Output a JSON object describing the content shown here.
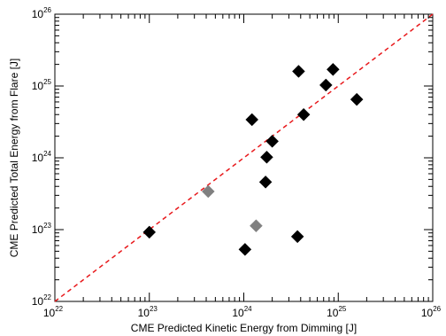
{
  "chart_data": {
    "type": "scatter",
    "title": "",
    "xlabel": "CME Predicted Kinetic Energy from Dimming [J]",
    "ylabel": "CME Predicted Total Energy from Flare [J]",
    "x_scale": "log",
    "y_scale": "log",
    "xlim": [
      1e+22,
      1e+26
    ],
    "ylim": [
      1e+22,
      1e+26
    ],
    "x_ticks": [
      {
        "base": "10",
        "exp": "22",
        "value": 1e+22
      },
      {
        "base": "10",
        "exp": "23",
        "value": 1e+23
      },
      {
        "base": "10",
        "exp": "24",
        "value": 1e+24
      },
      {
        "base": "10",
        "exp": "25",
        "value": 1e+25
      },
      {
        "base": "10",
        "exp": "26",
        "value": 1e+26
      }
    ],
    "y_ticks": [
      {
        "base": "10",
        "exp": "22",
        "value": 1e+22
      },
      {
        "base": "10",
        "exp": "23",
        "value": 1e+23
      },
      {
        "base": "10",
        "exp": "24",
        "value": 1e+24
      },
      {
        "base": "10",
        "exp": "25",
        "value": 1e+25
      },
      {
        "base": "10",
        "exp": "26",
        "value": 1e+26
      }
    ],
    "grid": false,
    "reference_line": {
      "type": "y=x",
      "style": "dashed",
      "color": "#e8191c"
    },
    "marker": "diamond",
    "series": [
      {
        "color": "#000000",
        "points": [
          {
            "x": 1e+23,
            "y": 9.2e+22
          },
          {
            "x": 1.03e+24,
            "y": 5.3e+22
          },
          {
            "x": 1.22e+24,
            "y": 3.4e+24
          },
          {
            "x": 1.7e+24,
            "y": 4.6e+23
          },
          {
            "x": 1.75e+24,
            "y": 1.02e+24
          },
          {
            "x": 2e+24,
            "y": 1.7e+24
          },
          {
            "x": 3.7e+24,
            "y": 8e+22
          },
          {
            "x": 3.8e+24,
            "y": 1.6e+25
          },
          {
            "x": 4.3e+24,
            "y": 4e+24
          },
          {
            "x": 7.4e+24,
            "y": 1.03e+25
          },
          {
            "x": 8.8e+24,
            "y": 1.7e+25
          },
          {
            "x": 1.57e+25,
            "y": 6.5e+24
          }
        ]
      },
      {
        "color": "#808080",
        "points": [
          {
            "x": 4.2e+23,
            "y": 3.4e+23
          },
          {
            "x": 1.35e+24,
            "y": 1.13e+23
          }
        ]
      }
    ]
  }
}
